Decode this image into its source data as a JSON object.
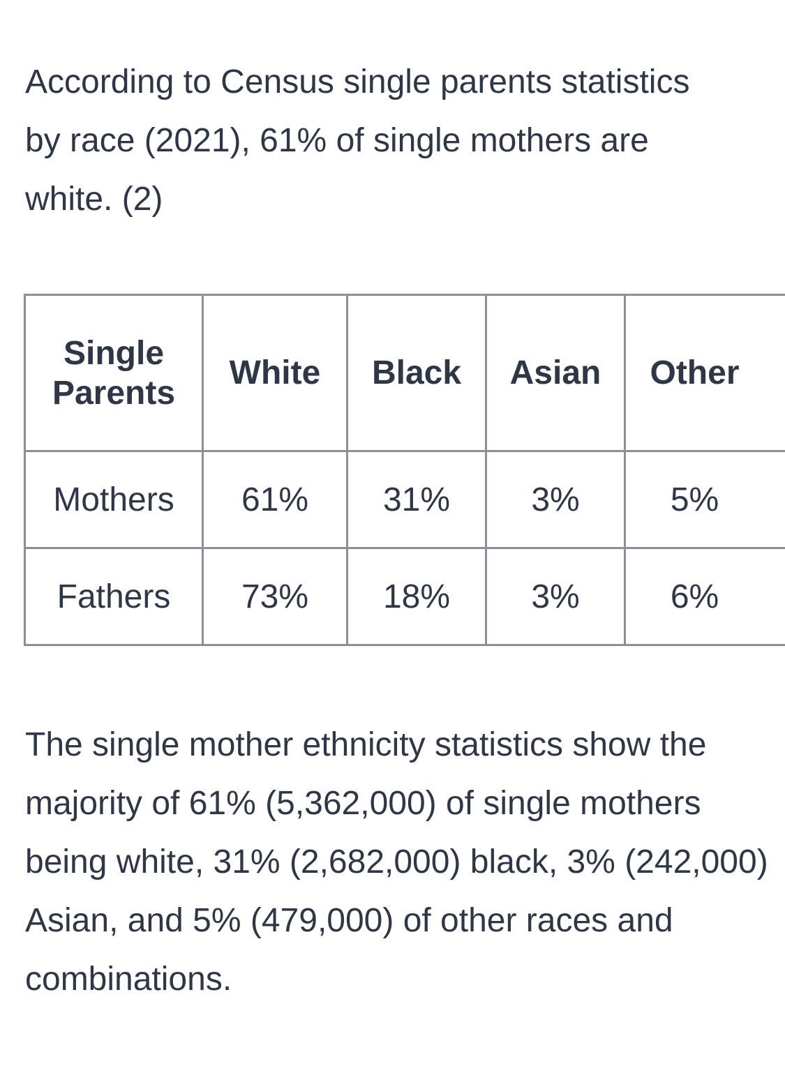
{
  "intro_text": "According to Census single parents statistics by race (2021), 61% of single mothers are white. (2)",
  "table": {
    "header_label": "Single Parents",
    "columns": [
      "White",
      "Black",
      "Asian",
      "Other"
    ],
    "rows": [
      {
        "label": "Mothers",
        "values": [
          "61%",
          "31%",
          "3%",
          "5%"
        ]
      },
      {
        "label": "Fathers",
        "values": [
          "73%",
          "18%",
          "3%",
          "6%"
        ]
      }
    ]
  },
  "outro_text": "The single mother ethnicity statistics show the majority of 61% (5,362,000) of single mothers being white, 31% (2,682,000) black, 3% (242,000) Asian, and 5% (479,000) of other races and combinations."
}
